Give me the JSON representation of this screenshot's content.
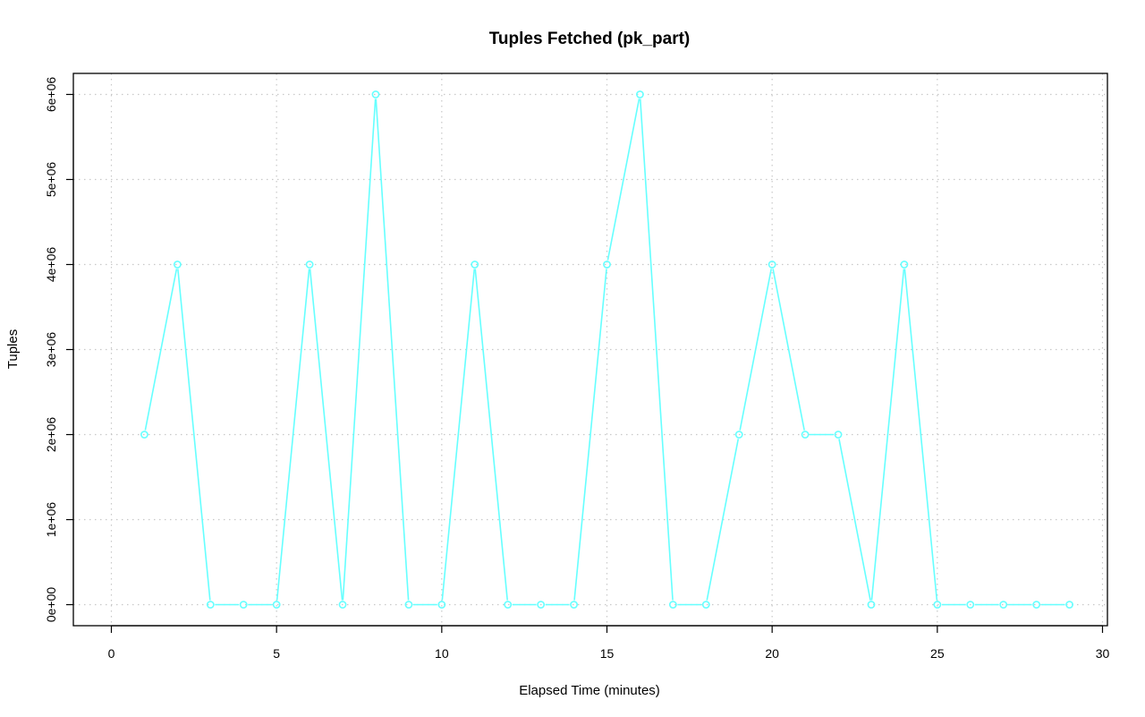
{
  "chart_data": {
    "type": "line",
    "title": "Tuples Fetched (pk_part)",
    "xlabel": "Elapsed Time (minutes)",
    "ylabel": "Tuples",
    "xlim": [
      0,
      30
    ],
    "ylim": [
      0,
      6000000
    ],
    "xticks": [
      0,
      5,
      10,
      15,
      20,
      25,
      30
    ],
    "xtick_labels": [
      "0",
      "5",
      "10",
      "15",
      "20",
      "25",
      "30"
    ],
    "yticks": [
      0,
      1000000,
      2000000,
      3000000,
      4000000,
      5000000,
      6000000
    ],
    "ytick_labels": [
      "0e+00",
      "1e+06",
      "2e+06",
      "3e+06",
      "4e+06",
      "5e+06",
      "6e+06"
    ],
    "grid": true,
    "series": [
      {
        "color": "#66ffff",
        "marker": "circle",
        "x": [
          1,
          2,
          3,
          4,
          5,
          6,
          7,
          8,
          9,
          10,
          11,
          12,
          13,
          14,
          15,
          16,
          17,
          18,
          19,
          20,
          21,
          22,
          23,
          24,
          25,
          26,
          27,
          28,
          29
        ],
        "y": [
          2000000,
          4000000,
          0,
          0,
          0,
          4000000,
          0,
          6000000,
          0,
          0,
          4000000,
          0,
          0,
          0,
          4000000,
          6000000,
          0,
          0,
          2000000,
          4000000,
          2000000,
          2000000,
          0,
          4000000,
          0,
          0,
          0,
          0,
          0
        ]
      }
    ]
  }
}
